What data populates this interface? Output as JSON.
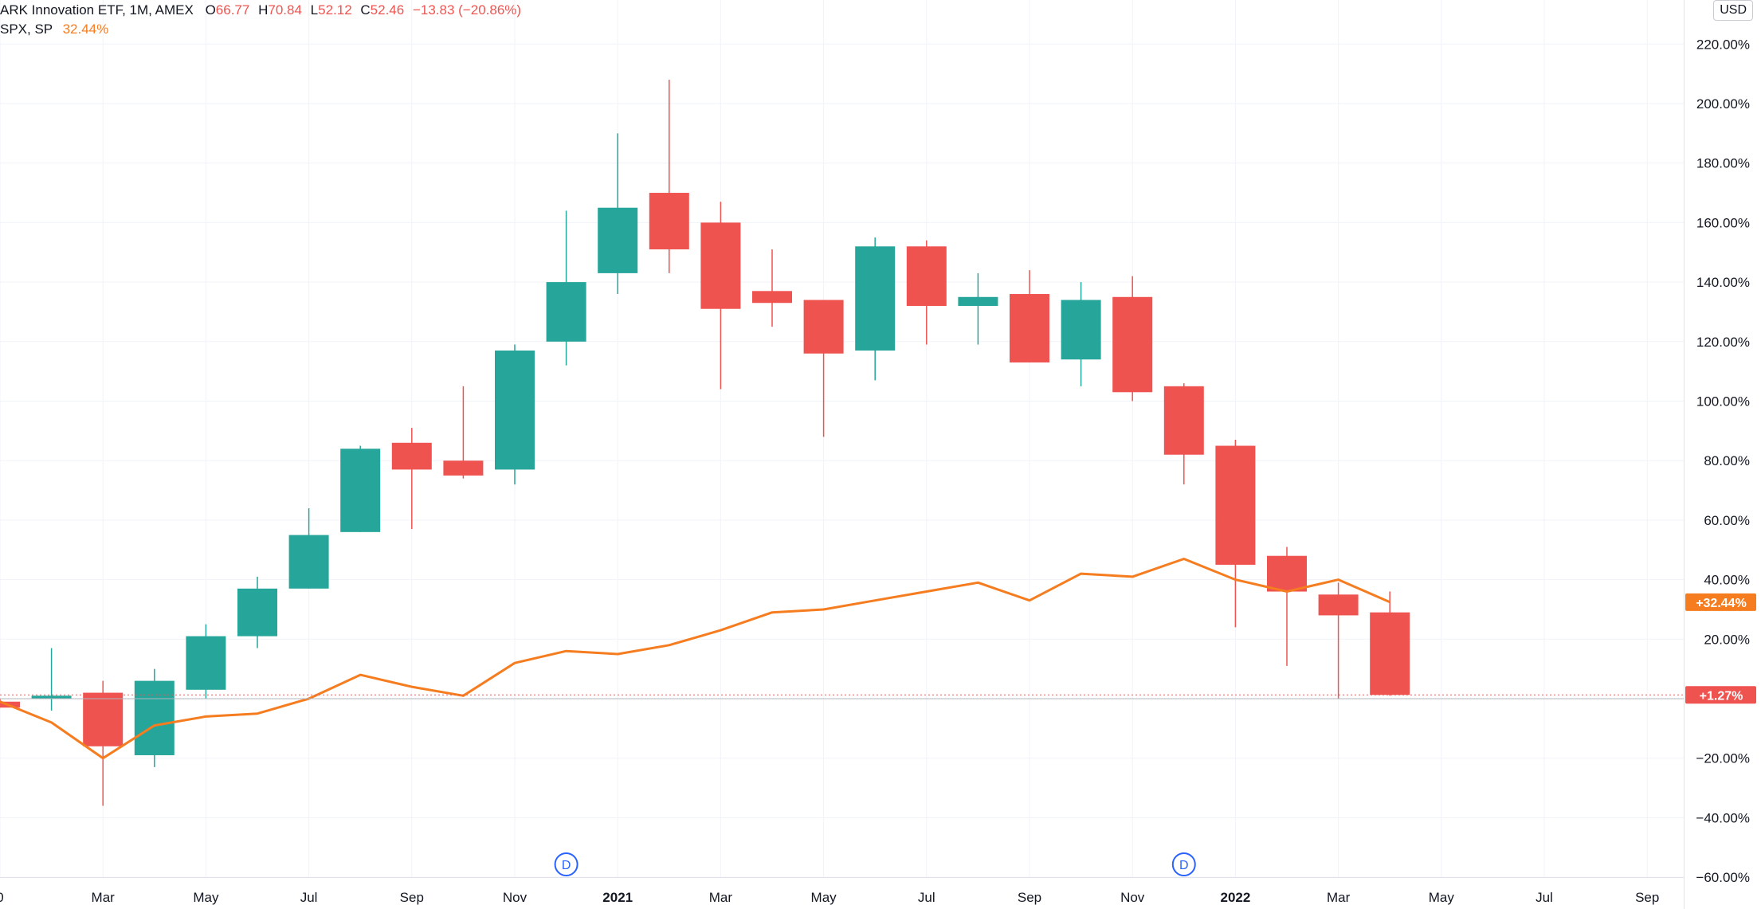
{
  "legend": {
    "main_name": "ARK Innovation ETF, 1M, AMEX",
    "o_label": "O",
    "o_value": "66.77",
    "h_label": "H",
    "h_value": "70.84",
    "l_label": "L",
    "l_value": "52.12",
    "c_label": "C",
    "c_value": "52.46",
    "change": "−13.83 (−20.86%)",
    "compare_name": "SPX, SP",
    "compare_value": "32.44%"
  },
  "currency": "USD",
  "colors": {
    "up": "#26a69a",
    "down": "#ef5350",
    "compare_line": "#f57c1f",
    "grid": "#f0f3fa",
    "text": "#131722",
    "dividend": "#2962ff"
  },
  "last_labels": {
    "spx": "+32.44%",
    "arkk": "+1.27%"
  },
  "dividend_markers": [
    {
      "label": "D",
      "month": "2020-12"
    },
    {
      "label": "D",
      "month": "2021-12"
    }
  ],
  "chart_data": {
    "type": "candlestick",
    "title": "",
    "y_unit": "percent change",
    "ylim": [
      -60,
      230
    ],
    "y_ticks": [
      220,
      200,
      180,
      160,
      140,
      120,
      100,
      80,
      60,
      40,
      20,
      0,
      -20,
      -40,
      -60
    ],
    "y_tick_labels": [
      "220.00%",
      "200.00%",
      "180.00%",
      "160.00%",
      "140.00%",
      "120.00%",
      "100.00%",
      "80.00%",
      "60.00%",
      "40.00%",
      "20.00%",
      "",
      "−20.00%",
      "−40.00%",
      "−60.00%"
    ],
    "x_tick_labels": [
      {
        "label": "0",
        "month": "2020-01",
        "bold": false
      },
      {
        "label": "Mar",
        "month": "2020-03",
        "bold": false
      },
      {
        "label": "May",
        "month": "2020-05",
        "bold": false
      },
      {
        "label": "Jul",
        "month": "2020-07",
        "bold": false
      },
      {
        "label": "Sep",
        "month": "2020-09",
        "bold": false
      },
      {
        "label": "Nov",
        "month": "2020-11",
        "bold": false
      },
      {
        "label": "2021",
        "month": "2021-01",
        "bold": true
      },
      {
        "label": "Mar",
        "month": "2021-03",
        "bold": false
      },
      {
        "label": "May",
        "month": "2021-05",
        "bold": false
      },
      {
        "label": "Jul",
        "month": "2021-07",
        "bold": false
      },
      {
        "label": "Sep",
        "month": "2021-09",
        "bold": false
      },
      {
        "label": "Nov",
        "month": "2021-11",
        "bold": false
      },
      {
        "label": "2022",
        "month": "2022-01",
        "bold": true
      },
      {
        "label": "Mar",
        "month": "2022-03",
        "bold": false
      },
      {
        "label": "May",
        "month": "2022-05",
        "bold": false
      },
      {
        "label": "Jul",
        "month": "2022-07",
        "bold": false
      },
      {
        "label": "Sep",
        "month": "2022-09",
        "bold": false
      }
    ],
    "x_range_months": [
      "2020-01",
      "2022-10"
    ],
    "series": [
      {
        "name": "ARK Innovation ETF, 1M, AMEX",
        "kind": "candles",
        "candles": [
          {
            "month": "2020-01",
            "open": -1,
            "high": 0,
            "low": -3,
            "close": -3
          },
          {
            "month": "2020-02",
            "open": 0,
            "high": 17,
            "low": -4,
            "close": 1
          },
          {
            "month": "2020-03",
            "open": 2,
            "high": 6,
            "low": -36,
            "close": -16
          },
          {
            "month": "2020-04",
            "open": -19,
            "high": 10,
            "low": -23,
            "close": 6
          },
          {
            "month": "2020-05",
            "open": 3,
            "high": 25,
            "low": 0,
            "close": 21
          },
          {
            "month": "2020-06",
            "open": 21,
            "high": 41,
            "low": 17,
            "close": 37
          },
          {
            "month": "2020-07",
            "open": 37,
            "high": 64,
            "low": 37,
            "close": 55
          },
          {
            "month": "2020-08",
            "open": 56,
            "high": 85,
            "low": 56,
            "close": 84
          },
          {
            "month": "2020-09",
            "open": 86,
            "high": 91,
            "low": 57,
            "close": 77
          },
          {
            "month": "2020-10",
            "open": 80,
            "high": 105,
            "low": 74,
            "close": 75
          },
          {
            "month": "2020-11",
            "open": 77,
            "high": 119,
            "low": 72,
            "close": 117
          },
          {
            "month": "2020-12",
            "open": 120,
            "high": 164,
            "low": 112,
            "close": 140
          },
          {
            "month": "2021-01",
            "open": 143,
            "high": 190,
            "low": 136,
            "close": 165
          },
          {
            "month": "2021-02",
            "open": 170,
            "high": 208,
            "low": 143,
            "close": 151
          },
          {
            "month": "2021-03",
            "open": 160,
            "high": 167,
            "low": 104,
            "close": 131
          },
          {
            "month": "2021-04",
            "open": 137,
            "high": 151,
            "low": 125,
            "close": 133
          },
          {
            "month": "2021-05",
            "open": 134,
            "high": 134,
            "low": 88,
            "close": 116
          },
          {
            "month": "2021-06",
            "open": 117,
            "high": 155,
            "low": 107,
            "close": 152
          },
          {
            "month": "2021-07",
            "open": 152,
            "high": 154,
            "low": 119,
            "close": 132
          },
          {
            "month": "2021-08",
            "open": 132,
            "high": 143,
            "low": 119,
            "close": 135
          },
          {
            "month": "2021-09",
            "open": 136,
            "high": 144,
            "low": 113,
            "close": 113
          },
          {
            "month": "2021-10",
            "open": 114,
            "high": 140,
            "low": 105,
            "close": 134
          },
          {
            "month": "2021-11",
            "open": 135,
            "high": 142,
            "low": 100,
            "close": 103
          },
          {
            "month": "2021-12",
            "open": 105,
            "high": 106,
            "low": 72,
            "close": 82
          },
          {
            "month": "2022-01",
            "open": 85,
            "high": 87,
            "low": 24,
            "close": 45
          },
          {
            "month": "2022-02",
            "open": 48,
            "high": 51,
            "low": 11,
            "close": 36
          },
          {
            "month": "2022-03",
            "open": 35,
            "high": 39,
            "low": 0,
            "close": 28
          },
          {
            "month": "2022-04",
            "open": 29,
            "high": 36,
            "low": 1,
            "close": 1.27
          }
        ]
      },
      {
        "name": "SPX, SP",
        "kind": "line",
        "points": [
          {
            "month": "2020-01",
            "value": -1
          },
          {
            "month": "2020-02",
            "value": -8
          },
          {
            "month": "2020-03",
            "value": -20
          },
          {
            "month": "2020-04",
            "value": -9
          },
          {
            "month": "2020-05",
            "value": -6
          },
          {
            "month": "2020-06",
            "value": -5
          },
          {
            "month": "2020-07",
            "value": 0
          },
          {
            "month": "2020-08",
            "value": 8
          },
          {
            "month": "2020-09",
            "value": 4
          },
          {
            "month": "2020-10",
            "value": 1
          },
          {
            "month": "2020-11",
            "value": 12
          },
          {
            "month": "2020-12",
            "value": 16
          },
          {
            "month": "2021-01",
            "value": 15
          },
          {
            "month": "2021-02",
            "value": 18
          },
          {
            "month": "2021-03",
            "value": 23
          },
          {
            "month": "2021-04",
            "value": 29
          },
          {
            "month": "2021-05",
            "value": 30
          },
          {
            "month": "2021-06",
            "value": 33
          },
          {
            "month": "2021-07",
            "value": 36
          },
          {
            "month": "2021-08",
            "value": 39
          },
          {
            "month": "2021-09",
            "value": 33
          },
          {
            "month": "2021-10",
            "value": 42
          },
          {
            "month": "2021-11",
            "value": 41
          },
          {
            "month": "2021-12",
            "value": 47
          },
          {
            "month": "2022-01",
            "value": 40
          },
          {
            "month": "2022-02",
            "value": 36
          },
          {
            "month": "2022-03",
            "value": 40
          },
          {
            "month": "2022-04",
            "value": 32.44
          }
        ]
      }
    ]
  }
}
